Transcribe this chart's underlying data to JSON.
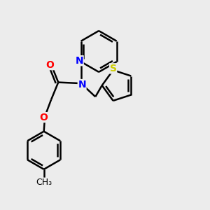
{
  "bg_color": "#ececec",
  "atom_colors": {
    "N": "#0000ff",
    "O": "#ff0000",
    "S": "#cccc00",
    "C": "#000000"
  },
  "bond_color": "#000000",
  "bond_width": 1.8,
  "font_size": 10,
  "figsize": [
    3.0,
    3.0
  ],
  "dpi": 100,
  "xlim": [
    0,
    10
  ],
  "ylim": [
    0,
    10
  ]
}
